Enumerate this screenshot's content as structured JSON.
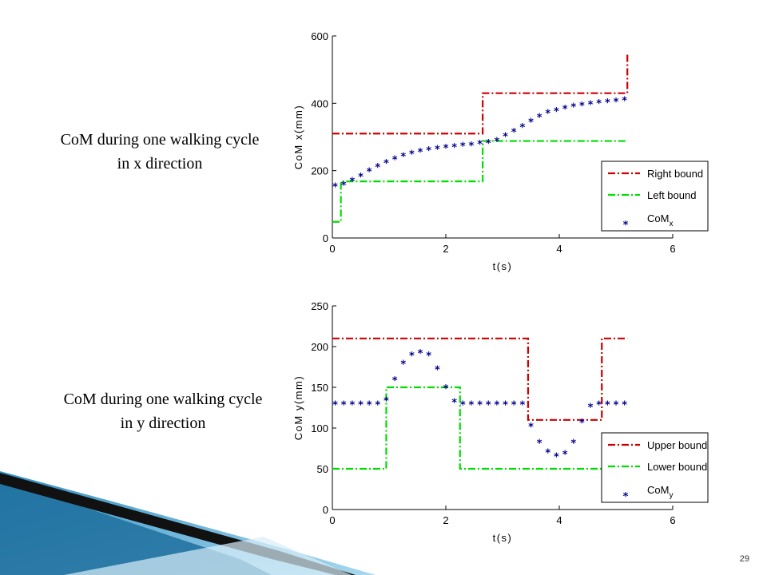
{
  "captions": {
    "x": {
      "line1": "CoM during one walking cycle",
      "line2": "in x direction"
    },
    "y": {
      "line1": "CoM during one walking cycle",
      "line2": "in y direction"
    }
  },
  "page_number": "29",
  "colors": {
    "bound_upper": "#cc0000",
    "bound_lower": "#00dd00",
    "com": "#00008b"
  },
  "chart_data": [
    {
      "type": "line",
      "xlabel": "t(s)",
      "ylabel": "CoM x(mm)",
      "xlim": [
        0,
        6
      ],
      "ylim": [
        0,
        600
      ],
      "xticks": [
        0,
        2,
        4,
        6
      ],
      "yticks": [
        0,
        200,
        400,
        600
      ],
      "legend_position": "bottom-right",
      "series": [
        {
          "name": "Right bound",
          "style": "dash-dot",
          "color": "#cc0000",
          "x": [
            0,
            2.65,
            2.65,
            5.2,
            5.2
          ],
          "y": [
            310,
            310,
            430,
            430,
            550
          ]
        },
        {
          "name": "Left bound",
          "style": "dash-dot",
          "color": "#00dd00",
          "x": [
            0,
            0.15,
            0.15,
            2.65,
            2.65,
            5.2
          ],
          "y": [
            48,
            48,
            168,
            168,
            288,
            288
          ]
        },
        {
          "name": "CoM",
          "subscript": "x",
          "style": "marker",
          "color": "#00008b",
          "x": [
            0.05,
            0.2,
            0.35,
            0.5,
            0.65,
            0.8,
            0.95,
            1.1,
            1.25,
            1.4,
            1.55,
            1.7,
            1.85,
            2.0,
            2.15,
            2.3,
            2.45,
            2.6,
            2.75,
            2.9,
            3.05,
            3.2,
            3.35,
            3.5,
            3.65,
            3.8,
            3.95,
            4.1,
            4.25,
            4.4,
            4.55,
            4.7,
            4.85,
            5.0,
            5.15
          ],
          "y": [
            155,
            160,
            172,
            185,
            200,
            213,
            225,
            236,
            245,
            252,
            258,
            263,
            267,
            270,
            273,
            276,
            278,
            282,
            285,
            290,
            305,
            318,
            332,
            348,
            362,
            374,
            380,
            386,
            392,
            396,
            400,
            403,
            406,
            408,
            412
          ]
        }
      ]
    },
    {
      "type": "line",
      "xlabel": "t(s)",
      "ylabel": "CoM y(mm)",
      "xlim": [
        0,
        6
      ],
      "ylim": [
        0,
        250
      ],
      "xticks": [
        0,
        2,
        4,
        6
      ],
      "yticks": [
        0,
        50,
        100,
        150,
        200,
        250
      ],
      "legend_position": "bottom-right",
      "series": [
        {
          "name": "Upper bound",
          "style": "dash-dot",
          "color": "#cc0000",
          "x": [
            0,
            3.45,
            3.45,
            4.75,
            4.75,
            5.2
          ],
          "y": [
            210,
            210,
            110,
            110,
            210,
            210
          ]
        },
        {
          "name": "Lower bound",
          "style": "dash-dot",
          "color": "#00dd00",
          "x": [
            0,
            0.95,
            0.95,
            2.25,
            2.25,
            5.2
          ],
          "y": [
            50,
            50,
            150,
            150,
            50,
            50
          ]
        },
        {
          "name": "CoM",
          "subscript": "y",
          "style": "marker",
          "color": "#00008b",
          "x": [
            0.05,
            0.2,
            0.35,
            0.5,
            0.65,
            0.8,
            0.95,
            1.1,
            1.25,
            1.4,
            1.55,
            1.7,
            1.85,
            2.0,
            2.15,
            2.3,
            2.45,
            2.6,
            2.75,
            2.9,
            3.05,
            3.2,
            3.35,
            3.5,
            3.65,
            3.8,
            3.95,
            4.1,
            4.25,
            4.4,
            4.55,
            4.7,
            4.85,
            5.0,
            5.15
          ],
          "y": [
            130,
            130,
            130,
            130,
            130,
            130,
            135,
            160,
            180,
            190,
            193,
            190,
            173,
            150,
            133,
            130,
            130,
            130,
            130,
            130,
            130,
            130,
            130,
            103,
            83,
            71,
            66,
            69,
            83,
            108,
            127,
            130,
            130,
            130,
            130
          ]
        }
      ]
    }
  ]
}
